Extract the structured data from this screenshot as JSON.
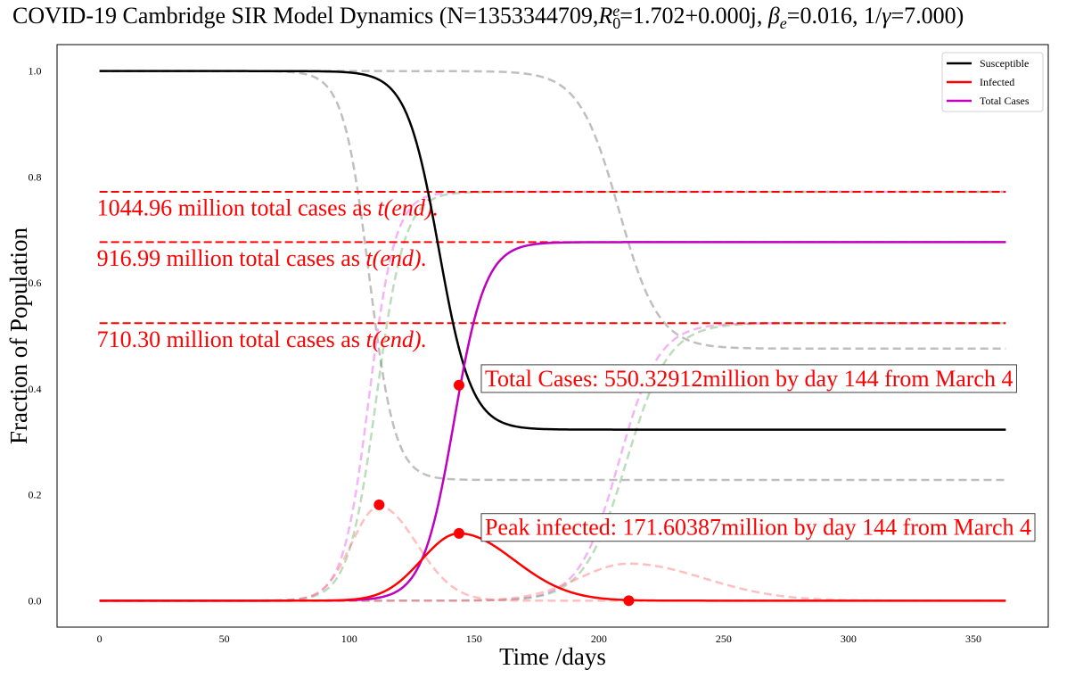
{
  "chart_data": {
    "type": "line",
    "title_parts": [
      {
        "t": "COVID-19 Cambridge SIR Model Dynamics (N=1353344709,",
        "s": "n"
      },
      {
        "t": "R",
        "s": "i"
      },
      {
        "t": "0",
        "s": "sub"
      },
      {
        "t": "e",
        "s": "supi"
      },
      {
        "t": "=1.702+0.000j, ",
        "s": "n"
      },
      {
        "t": "β",
        "s": "i"
      },
      {
        "t": "e",
        "s": "subi"
      },
      {
        "t": "=0.016, 1/",
        "s": "n"
      },
      {
        "t": "γ",
        "s": "i"
      },
      {
        "t": "=7.000)",
        "s": "n"
      }
    ],
    "xlabel": "Time /days",
    "ylabel": "Fraction of Population",
    "xlim": [
      -17,
      380
    ],
    "ylim": [
      -0.05,
      1.05
    ],
    "xticks": [
      0,
      50,
      100,
      150,
      200,
      250,
      300,
      350
    ],
    "yticks": [
      0.0,
      0.2,
      0.4,
      0.6,
      0.8,
      1.0
    ],
    "ytick_labels": [
      "0.0",
      "0.2",
      "0.4",
      "0.6",
      "0.8",
      "1.0"
    ],
    "grid": false,
    "legend_position": "top-right",
    "legend": [
      {
        "name": "Susceptible",
        "color": "#000000"
      },
      {
        "name": "Infected",
        "color": "#ff0000"
      },
      {
        "name": "Total Cases",
        "color": "#bf00bf"
      }
    ],
    "main_series": [
      {
        "name": "Susceptible",
        "color": "#000000",
        "kind": "logistic_down",
        "top": 1.0,
        "bottom": 0.323,
        "mid": 136,
        "scale": 6.5
      },
      {
        "name": "Total Cases",
        "color": "#bf00bf",
        "kind": "logistic_up",
        "top": 0.677,
        "bottom": 0.0,
        "mid": 142,
        "scale": 6.3
      },
      {
        "name": "Infected",
        "color": "#ff0000",
        "kind": "bump",
        "peak": 0.127,
        "center": 144,
        "width_left": 15,
        "width_right": 22
      }
    ],
    "faded_series": [
      {
        "color": "#808080",
        "opacity": 0.5,
        "kind": "logistic_down",
        "top": 1.0,
        "bottom": 0.228,
        "mid": 108,
        "scale": 5.2
      },
      {
        "color": "#808080",
        "opacity": 0.5,
        "kind": "logistic_down",
        "top": 1.0,
        "bottom": 0.476,
        "mid": 208,
        "scale": 8
      },
      {
        "color": "#ee82ee",
        "opacity": 0.6,
        "kind": "logistic_up",
        "top": 0.772,
        "bottom": 0.0,
        "mid": 108,
        "scale": 5.2
      },
      {
        "color": "#ee82ee",
        "opacity": 0.6,
        "kind": "logistic_up",
        "top": 0.524,
        "bottom": 0.0,
        "mid": 208,
        "scale": 8
      },
      {
        "color": "#3c9d3c",
        "opacity": 0.35,
        "kind": "logistic_up",
        "top": 0.772,
        "bottom": 0.0,
        "mid": 111,
        "scale": 5.6
      },
      {
        "color": "#3c9d3c",
        "opacity": 0.35,
        "kind": "logistic_up",
        "top": 0.524,
        "bottom": 0.0,
        "mid": 211,
        "scale": 8.5
      },
      {
        "color": "#ff7f7f",
        "opacity": 0.5,
        "kind": "bump",
        "peak": 0.178,
        "center": 112,
        "width_left": 11,
        "width_right": 15
      },
      {
        "color": "#ff7f7f",
        "opacity": 0.5,
        "kind": "bump",
        "peak": 0.07,
        "center": 212,
        "width_left": 20,
        "width_right": 30
      }
    ],
    "hlines": [
      {
        "y": 0.772,
        "color": "#ff0000",
        "x_from": 0,
        "x_to": 363
      },
      {
        "y": 0.677,
        "color": "#ff0000",
        "x_from": 0,
        "x_to": 363
      },
      {
        "y": 0.524,
        "color": "#ff0000",
        "x_from": 0,
        "x_to": 363
      }
    ],
    "hline_labels": [
      {
        "value": "1044.96 million total cases as",
        "x": 0,
        "y": 0.727
      },
      {
        "value": "916.99 million total cases as",
        "x": 0,
        "y": 0.632
      },
      {
        "value": "710.30 million total cases as",
        "x": 0,
        "y": 0.479
      }
    ],
    "hline_label_suffix": "t(end).",
    "markers": [
      {
        "x": 144,
        "y": 0.407,
        "color": "#ff0000"
      },
      {
        "x": 112,
        "y": 0.181,
        "color": "#ff0000"
      },
      {
        "x": 144,
        "y": 0.127,
        "color": "#ff0000"
      },
      {
        "x": 212,
        "y": 0.0,
        "color": "#ff0000"
      }
    ],
    "annotations": [
      {
        "text": "Total Cases: 550.32912million by day 144 from March 4",
        "x": 154,
        "y": 0.405
      },
      {
        "text": "Peak infected: 171.60387million by day 144 from March 4",
        "x": 154,
        "y": 0.124
      }
    ]
  }
}
